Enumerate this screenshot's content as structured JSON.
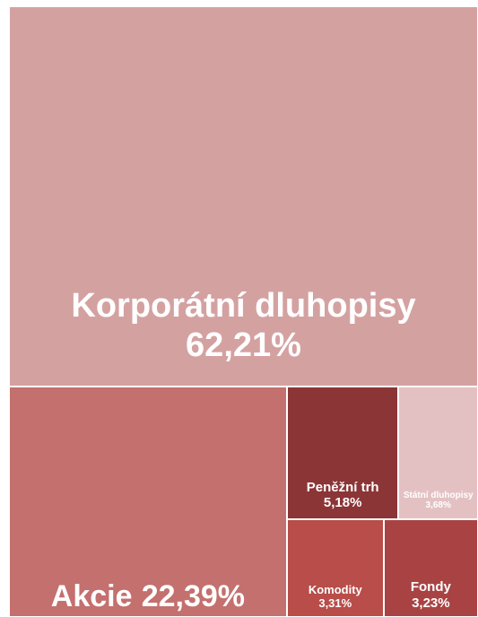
{
  "chart_data": {
    "type": "treemap",
    "categories": [
      "Korporátní dluhopisy",
      "Akcie",
      "Peněžní trh",
      "Státní dluhopisy",
      "Komodity",
      "Fondy"
    ],
    "values": [
      62.21,
      22.39,
      5.18,
      3.68,
      3.31,
      3.23
    ],
    "value_labels": [
      "62,21%",
      "22,39%",
      "5,18%",
      "3,68%",
      "3,31%",
      "3,23%"
    ],
    "colors": [
      "#d4a1a1",
      "#c4706e",
      "#8b3536",
      "#e3c1c3",
      "#b84d49",
      "#a94343"
    ]
  }
}
